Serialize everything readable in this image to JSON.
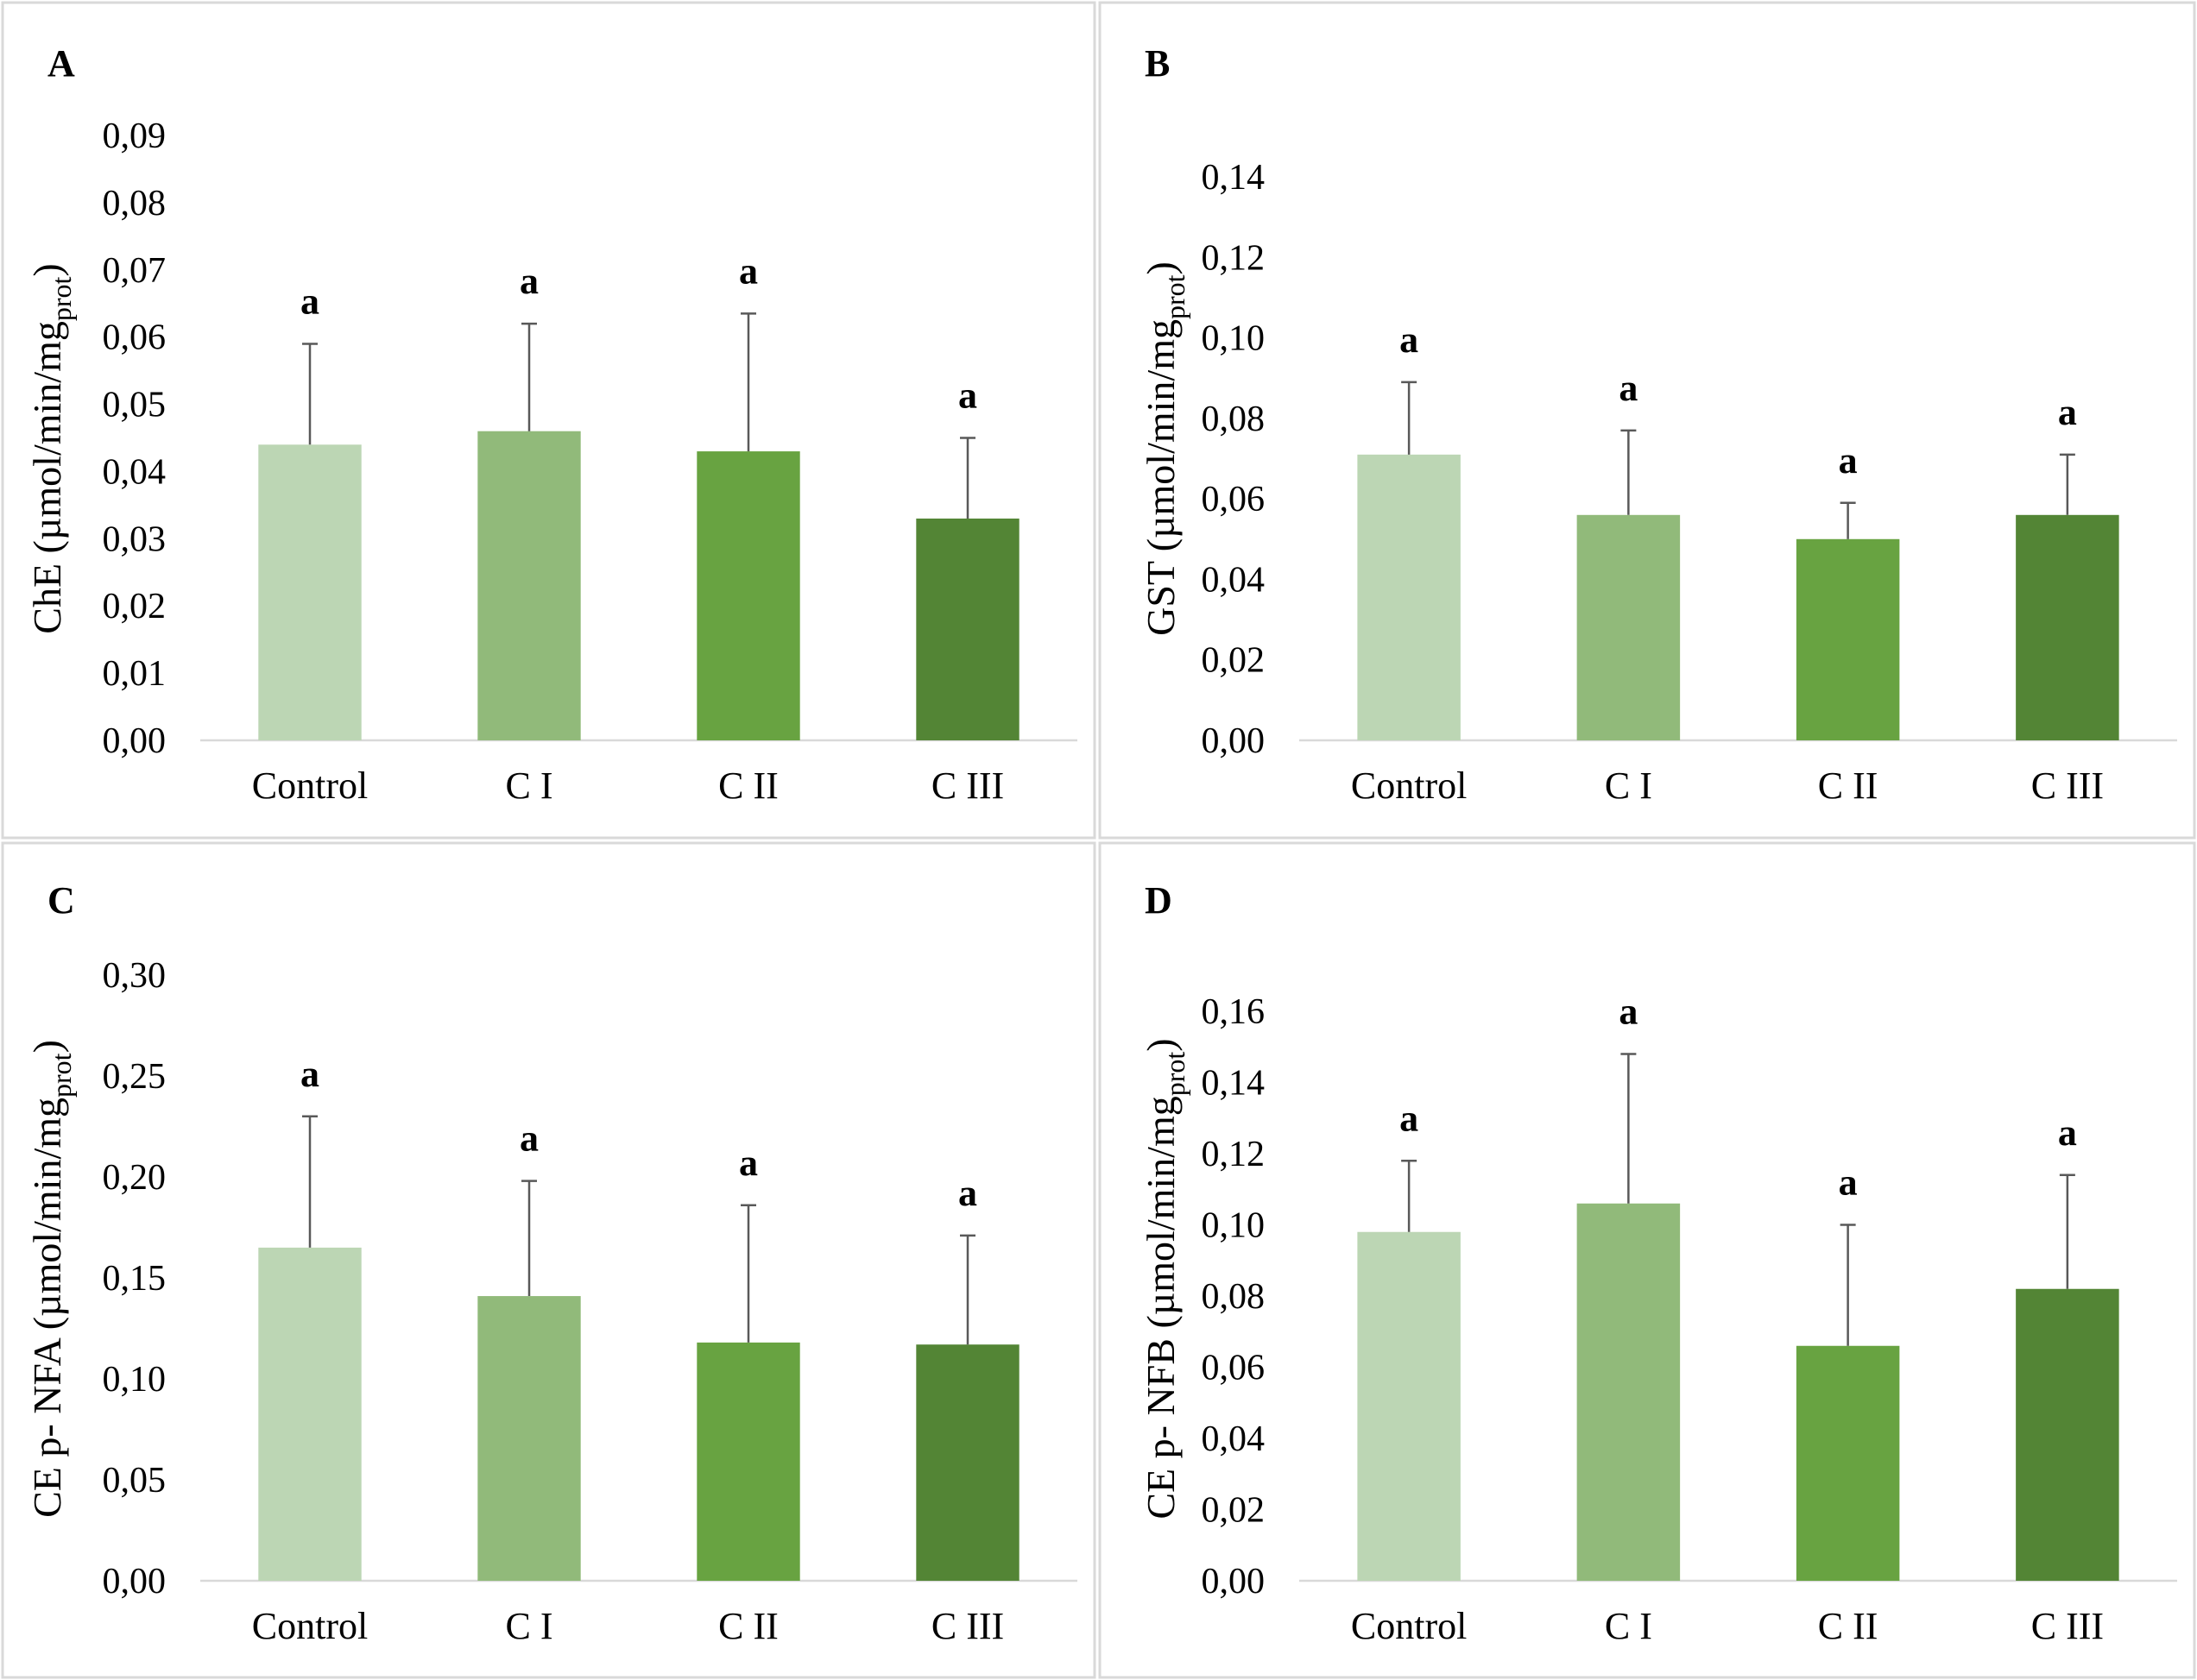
{
  "bar_colors": [
    "#bcd6b4",
    "#91ba7a",
    "#68a341",
    "#538535"
  ],
  "error_color": "#595959",
  "chart_data": [
    {
      "panel": "A",
      "type": "bar",
      "categories": [
        "Control",
        "C I",
        "C II",
        "C III"
      ],
      "values": [
        0.044,
        0.046,
        0.043,
        0.033
      ],
      "errors": [
        0.015,
        0.016,
        0.0205,
        0.012
      ],
      "significance": [
        "a",
        "a",
        "a",
        "a"
      ],
      "ylabel": "ChE (µmol/min/mg",
      "ylabel_sub": "prot",
      "ylabel_close": ")",
      "ylim": [
        0,
        0.09
      ],
      "ytick_step": 0.01,
      "yticks": [
        "0,00",
        "0,01",
        "0,02",
        "0,03",
        "0,04",
        "0,05",
        "0,06",
        "0,07",
        "0,08",
        "0,09"
      ]
    },
    {
      "panel": "B",
      "type": "bar",
      "categories": [
        "Control",
        "C I",
        "C II",
        "C III"
      ],
      "values": [
        0.071,
        0.056,
        0.05,
        0.056
      ],
      "errors": [
        0.018,
        0.021,
        0.009,
        0.015
      ],
      "significance": [
        "a",
        "a",
        "a",
        "a"
      ],
      "ylabel": "GST  (µmol/min/mg",
      "ylabel_sub": "prot",
      "ylabel_close": ")",
      "ylim": [
        0,
        0.14
      ],
      "ytick_step": 0.02,
      "yticks": [
        "0,00",
        "0,02",
        "0,04",
        "0,06",
        "0,08",
        "0,10",
        "0,12",
        "0,14"
      ]
    },
    {
      "panel": "C",
      "type": "bar",
      "categories": [
        "Control",
        "C I",
        "C II",
        "C III"
      ],
      "values": [
        0.165,
        0.141,
        0.118,
        0.117
      ],
      "errors": [
        0.065,
        0.057,
        0.068,
        0.054
      ],
      "significance": [
        "a",
        "a",
        "a",
        "a"
      ],
      "ylabel": "CE p- NFA (µmol/min/mg",
      "ylabel_sub": "prot",
      "ylabel_close": ")",
      "ylim": [
        0,
        0.3
      ],
      "ytick_step": 0.05,
      "yticks": [
        "0,00",
        "0,05",
        "0,10",
        "0,15",
        "0,20",
        "0,25",
        "0,30"
      ]
    },
    {
      "panel": "D",
      "type": "bar",
      "categories": [
        "Control",
        "C I",
        "C II",
        "C III"
      ],
      "values": [
        0.098,
        0.106,
        0.066,
        0.082
      ],
      "errors": [
        0.02,
        0.042,
        0.034,
        0.032
      ],
      "significance": [
        "a",
        "a",
        "a",
        "a"
      ],
      "ylabel": "CE p- NFB (µmol/min/mg",
      "ylabel_sub": "prot",
      "ylabel_close": ")",
      "ylim": [
        0,
        0.16
      ],
      "ytick_step": 0.02,
      "yticks": [
        "0,00",
        "0,02",
        "0,04",
        "0,06",
        "0,08",
        "0,10",
        "0,12",
        "0,14",
        "0,16"
      ]
    }
  ]
}
